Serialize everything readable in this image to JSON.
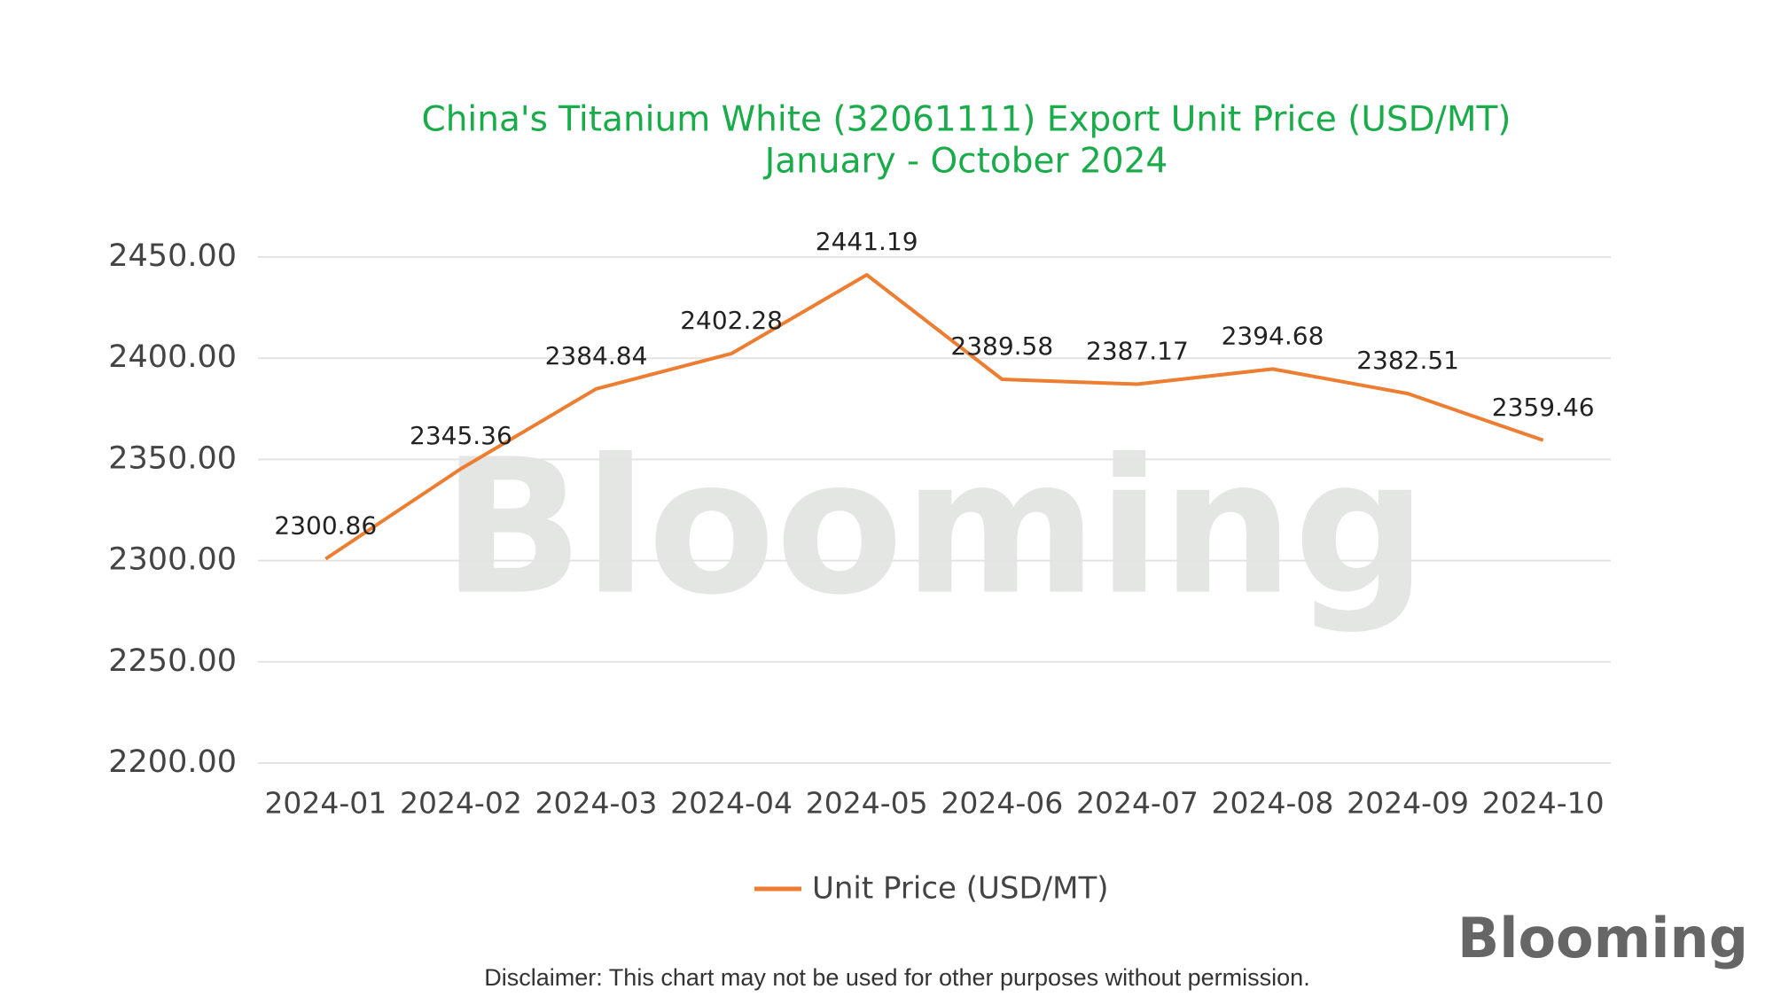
{
  "chart_data": {
    "type": "line",
    "title": "China's Titanium White (32061111) Export Unit Price (USD/MT)",
    "subtitle": "January - October 2024",
    "categories": [
      "2024-01",
      "2024-02",
      "2024-03",
      "2024-04",
      "2024-05",
      "2024-06",
      "2024-07",
      "2024-08",
      "2024-09",
      "2024-10"
    ],
    "series": [
      {
        "name": "Unit Price (USD/MT)",
        "color": "#ed7d31",
        "values": [
          2300.86,
          2345.36,
          2384.84,
          2402.28,
          2441.19,
          2389.58,
          2387.17,
          2394.68,
          2382.51,
          2359.46
        ]
      }
    ],
    "ylim": [
      2200,
      2450
    ],
    "yticks": [
      {
        "value": 2200,
        "label": "2200.00"
      },
      {
        "value": 2250,
        "label": "2250.00"
      },
      {
        "value": 2300,
        "label": "2300.00"
      },
      {
        "value": 2350,
        "label": "2350.00"
      },
      {
        "value": 2400,
        "label": "2400.00"
      },
      {
        "value": 2450,
        "label": "2450.00"
      }
    ],
    "grid": true,
    "legend": "bottom",
    "watermark": "Blooming",
    "logo": "Blooming",
    "disclaimer": "Disclaimer: This chart may not be used for other purposes without permission."
  }
}
